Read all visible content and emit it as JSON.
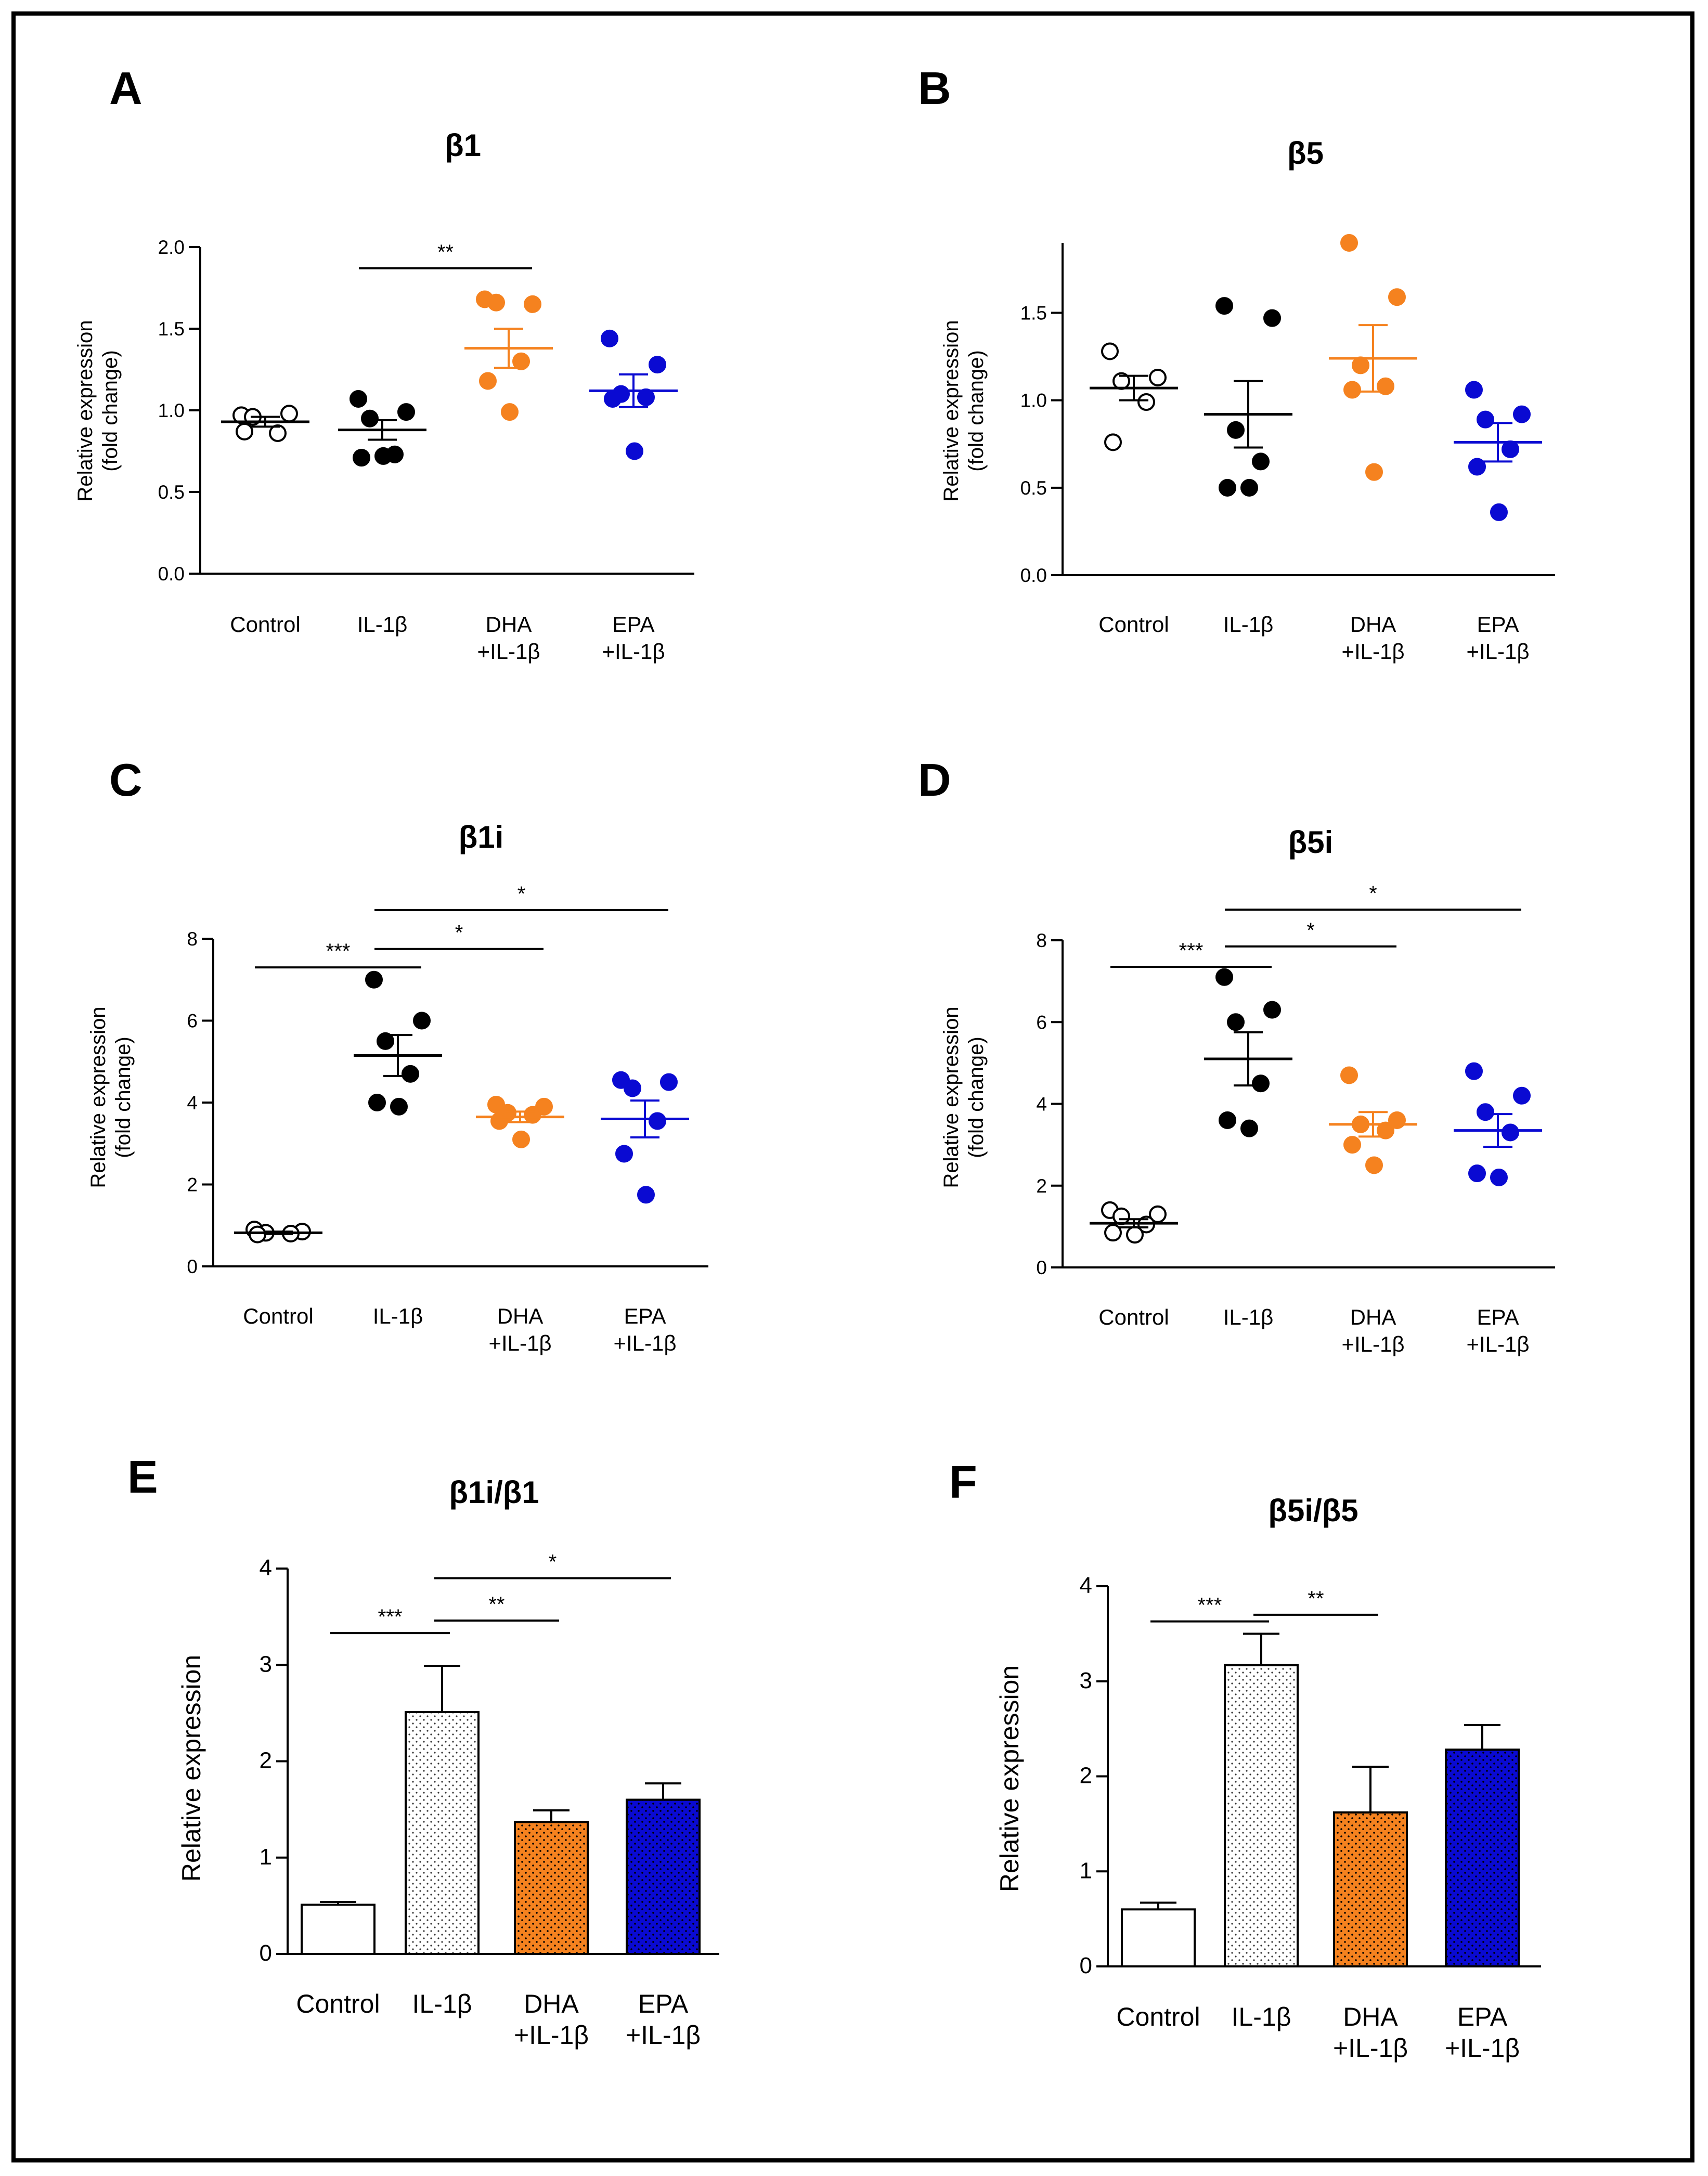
{
  "colors": {
    "control": "#ffffff",
    "il1b": "#000000",
    "dha": "#f5821f",
    "epa": "#0a0ad2",
    "axis": "#000000"
  },
  "chart_data": [
    {
      "panel": "A",
      "type": "scatter",
      "title": "β1",
      "ylabel": [
        "Relative expression",
        "(fold change)"
      ],
      "ylim": [
        0,
        2.0
      ],
      "yticks": [
        "0.0",
        "0.5",
        "1.0",
        "1.5",
        "2.0"
      ],
      "categories": [
        {
          "lines": [
            "Control"
          ],
          "points": [
            0.97,
            0.98,
            0.96,
            0.86,
            0.87
          ],
          "mean": 0.93,
          "sem": 0.03,
          "color": "#ffffff"
        },
        {
          "lines": [
            "IL-1β"
          ],
          "points": [
            1.07,
            0.99,
            0.95,
            0.73,
            0.71,
            0.72
          ],
          "mean": 0.88,
          "sem": 0.06,
          "color": "#000000"
        },
        {
          "lines": [
            "DHA",
            "+IL-1β"
          ],
          "points": [
            1.68,
            1.65,
            1.66,
            1.3,
            1.18,
            0.99
          ],
          "mean": 1.38,
          "sem": 0.12,
          "color": "#f5821f"
        },
        {
          "lines": [
            "EPA",
            "+IL-1β"
          ],
          "points": [
            1.44,
            1.28,
            1.1,
            1.08,
            1.07,
            0.75
          ],
          "mean": 1.12,
          "sem": 0.1,
          "color": "#0a0ad2"
        }
      ],
      "significance": [
        {
          "from": 1,
          "to": 2,
          "level": 1.87,
          "label": "**"
        }
      ]
    },
    {
      "panel": "B",
      "type": "scatter",
      "title": "β5",
      "ylabel": [
        "Relative expression",
        "(fold change)"
      ],
      "ylim": [
        0,
        1.9
      ],
      "yticks": [
        "0.0",
        "0.5",
        "1.0",
        "1.5"
      ],
      "categories": [
        {
          "lines": [
            "Control"
          ],
          "points": [
            1.28,
            1.13,
            1.11,
            0.99,
            0.76
          ],
          "mean": 1.07,
          "sem": 0.07,
          "color": "#ffffff"
        },
        {
          "lines": [
            "IL-1β"
          ],
          "points": [
            1.54,
            1.47,
            0.83,
            0.65,
            0.5,
            0.5
          ],
          "mean": 0.92,
          "sem": 0.19,
          "color": "#000000"
        },
        {
          "lines": [
            "DHA",
            "+IL-1β"
          ],
          "points": [
            1.9,
            1.59,
            1.2,
            1.08,
            1.06,
            0.59
          ],
          "mean": 1.24,
          "sem": 0.19,
          "color": "#f5821f"
        },
        {
          "lines": [
            "EPA",
            "+IL-1β"
          ],
          "points": [
            1.06,
            0.92,
            0.89,
            0.72,
            0.62,
            0.36
          ],
          "mean": 0.76,
          "sem": 0.11,
          "color": "#0a0ad2"
        }
      ],
      "significance": []
    },
    {
      "panel": "C",
      "type": "scatter",
      "title": "β1i",
      "ylabel": [
        "Relative expression",
        "(fold change)"
      ],
      "ylim": [
        0,
        8
      ],
      "yticks": [
        "0",
        "2",
        "4",
        "6",
        "8"
      ],
      "categories": [
        {
          "lines": [
            "Control"
          ],
          "points": [
            0.9,
            0.85,
            0.82,
            0.8,
            0.78
          ],
          "mean": 0.82,
          "sem": 0.03,
          "color": "#ffffff"
        },
        {
          "lines": [
            "IL-1β"
          ],
          "points": [
            7.0,
            6.0,
            5.5,
            4.7,
            4.0,
            3.9
          ],
          "mean": 5.15,
          "sem": 0.5,
          "color": "#000000"
        },
        {
          "lines": [
            "DHA",
            "+IL-1β"
          ],
          "points": [
            3.95,
            3.9,
            3.75,
            3.7,
            3.55,
            3.1
          ],
          "mean": 3.65,
          "sem": 0.13,
          "color": "#f5821f"
        },
        {
          "lines": [
            "EPA",
            "+IL-1β"
          ],
          "points": [
            4.55,
            4.5,
            4.35,
            3.55,
            2.75,
            1.75
          ],
          "mean": 3.6,
          "sem": 0.45,
          "color": "#0a0ad2"
        }
      ],
      "significance": [
        {
          "from": 0,
          "to": 1,
          "level": 7.3,
          "label": "***"
        },
        {
          "from": 1,
          "to": 2,
          "level": 7.75,
          "label": "*"
        },
        {
          "from": 1,
          "to": 3,
          "level": 8.7,
          "label": "*"
        }
      ]
    },
    {
      "panel": "D",
      "type": "scatter",
      "title": "β5i",
      "ylabel": [
        "Relative expression",
        "(fold change)"
      ],
      "ylim": [
        0,
        8
      ],
      "yticks": [
        "0",
        "2",
        "4",
        "6",
        "8"
      ],
      "categories": [
        {
          "lines": [
            "Control"
          ],
          "points": [
            1.4,
            1.3,
            1.25,
            1.05,
            0.85,
            0.8
          ],
          "mean": 1.08,
          "sem": 0.1,
          "color": "#ffffff"
        },
        {
          "lines": [
            "IL-1β"
          ],
          "points": [
            7.1,
            6.3,
            6.0,
            4.5,
            3.6,
            3.4
          ],
          "mean": 5.1,
          "sem": 0.65,
          "color": "#000000"
        },
        {
          "lines": [
            "DHA",
            "+IL-1β"
          ],
          "points": [
            4.7,
            3.6,
            3.5,
            3.35,
            3.0,
            2.5
          ],
          "mean": 3.5,
          "sem": 0.3,
          "color": "#f5821f"
        },
        {
          "lines": [
            "EPA",
            "+IL-1β"
          ],
          "points": [
            4.8,
            4.2,
            3.8,
            3.3,
            2.3,
            2.2
          ],
          "mean": 3.35,
          "sem": 0.4,
          "color": "#0a0ad2"
        }
      ],
      "significance": [
        {
          "from": 0,
          "to": 1,
          "level": 7.35,
          "label": "***"
        },
        {
          "from": 1,
          "to": 2,
          "level": 7.85,
          "label": "*"
        },
        {
          "from": 1,
          "to": 3,
          "level": 8.75,
          "label": "*"
        }
      ]
    },
    {
      "panel": "E",
      "type": "bar",
      "title": "β1i/β1",
      "ylabel": [
        "Relative expression"
      ],
      "ylim": [
        0,
        4
      ],
      "yticks": [
        "0",
        "1",
        "2",
        "3",
        "4"
      ],
      "categories": [
        {
          "lines": [
            "Control"
          ],
          "value": 0.51,
          "err": 0.03,
          "color": "#ffffff",
          "pattern": "none"
        },
        {
          "lines": [
            "IL-1β"
          ],
          "value": 2.51,
          "err": 0.48,
          "color": "#ffffff",
          "pattern": "dots"
        },
        {
          "lines": [
            "DHA",
            "+IL-1β"
          ],
          "value": 1.37,
          "err": 0.12,
          "color": "#f5821f",
          "pattern": "dots"
        },
        {
          "lines": [
            "EPA",
            "+IL-1β"
          ],
          "value": 1.6,
          "err": 0.17,
          "color": "#0a0ad2",
          "pattern": "dots"
        }
      ],
      "significance": [
        {
          "from": 0,
          "to": 1,
          "level": 3.33,
          "label": "***"
        },
        {
          "from": 1,
          "to": 2,
          "level": 3.46,
          "label": "**"
        },
        {
          "from": 1,
          "to": 3,
          "level": 3.9,
          "label": "*"
        }
      ]
    },
    {
      "panel": "F",
      "type": "bar",
      "title": "β5i/β5",
      "ylabel": [
        "Relative expression"
      ],
      "ylim": [
        0,
        4
      ],
      "yticks": [
        "0",
        "1",
        "2",
        "3",
        "4"
      ],
      "categories": [
        {
          "lines": [
            "Control"
          ],
          "value": 0.6,
          "err": 0.07,
          "color": "#ffffff",
          "pattern": "none"
        },
        {
          "lines": [
            "IL-1β"
          ],
          "value": 3.17,
          "err": 0.33,
          "color": "#ffffff",
          "pattern": "dots"
        },
        {
          "lines": [
            "DHA",
            "+IL-1β"
          ],
          "value": 1.62,
          "err": 0.48,
          "color": "#f5821f",
          "pattern": "dots"
        },
        {
          "lines": [
            "EPA",
            "+IL-1β"
          ],
          "value": 2.28,
          "err": 0.26,
          "color": "#0a0ad2",
          "pattern": "dots"
        }
      ],
      "significance": [
        {
          "from": 0,
          "to": 1,
          "level": 3.63,
          "label": "***"
        },
        {
          "from": 1,
          "to": 2,
          "level": 3.7,
          "label": "**"
        }
      ]
    }
  ]
}
